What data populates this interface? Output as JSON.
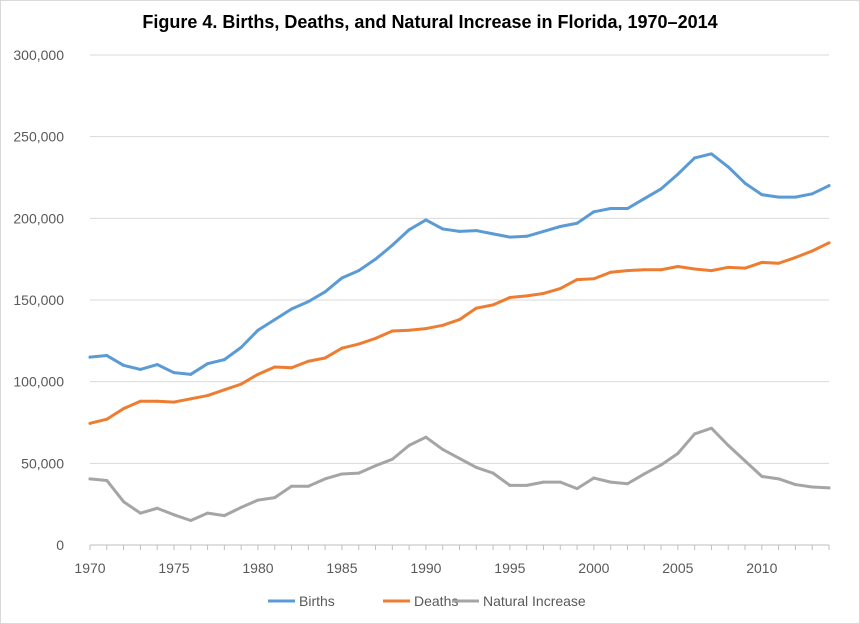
{
  "chart_data": {
    "type": "line",
    "title": "Figure 4. Births, Deaths, and Natural Increase in Florida, 1970–2014",
    "xlabel": "",
    "ylabel": "",
    "xlim": [
      1970,
      2014
    ],
    "ylim": [
      0,
      300000
    ],
    "x_ticks": [
      1970,
      1975,
      1980,
      1985,
      1990,
      1995,
      2000,
      2005,
      2010
    ],
    "y_ticks": [
      0,
      50000,
      100000,
      150000,
      200000,
      250000,
      300000
    ],
    "y_tick_labels": [
      "0",
      "50,000",
      "100,000",
      "150,000",
      "200,000",
      "250,000",
      "300,000"
    ],
    "grid": "horizontal",
    "legend_position": "bottom",
    "x": [
      1970,
      1971,
      1972,
      1973,
      1974,
      1975,
      1976,
      1977,
      1978,
      1979,
      1980,
      1981,
      1982,
      1983,
      1984,
      1985,
      1986,
      1987,
      1988,
      1989,
      1990,
      1991,
      1992,
      1993,
      1994,
      1995,
      1996,
      1997,
      1998,
      1999,
      2000,
      2001,
      2002,
      2003,
      2004,
      2005,
      2006,
      2007,
      2008,
      2009,
      2010,
      2011,
      2012,
      2013,
      2014
    ],
    "series": [
      {
        "name": "Births",
        "color": "#5b9bd5",
        "values": [
          115000,
          116000,
          110000,
          107500,
          110500,
          105500,
          104500,
          111000,
          113500,
          121000,
          131500,
          138000,
          144500,
          149000,
          155000,
          163500,
          168000,
          175000,
          183500,
          193000,
          199000,
          193500,
          192000,
          192500,
          190500,
          188500,
          189000,
          192000,
          195000,
          197000,
          204000,
          206000,
          206000,
          212000,
          218000,
          227000,
          237000,
          239500,
          231500,
          221500,
          214500,
          213000,
          213000,
          215000,
          220000
        ]
      },
      {
        "name": "Deaths",
        "color": "#ed7d31",
        "values": [
          74500,
          77000,
          83500,
          88000,
          88000,
          87500,
          89500,
          91500,
          95000,
          98500,
          104500,
          109000,
          108500,
          112500,
          114500,
          120500,
          123000,
          126500,
          131000,
          131500,
          132500,
          134500,
          138000,
          145000,
          147000,
          151500,
          152500,
          154000,
          157000,
          162500,
          163000,
          167000,
          168000,
          168500,
          168500,
          170500,
          169000,
          168000,
          170000,
          169500,
          173000,
          172500,
          176000,
          180000,
          185000
        ]
      },
      {
        "name": "Natural Increase",
        "color": "#a5a5a5",
        "values": [
          40500,
          39500,
          26500,
          19500,
          22500,
          18500,
          15000,
          19500,
          18000,
          23000,
          27500,
          29000,
          36000,
          36000,
          40500,
          43500,
          44000,
          48500,
          52500,
          61000,
          66000,
          58500,
          53000,
          47500,
          44000,
          36500,
          36500,
          38500,
          38500,
          34500,
          41000,
          38500,
          37500,
          43500,
          49000,
          56000,
          68000,
          71500,
          61000,
          51500,
          42000,
          40500,
          37000,
          35500,
          35000
        ]
      }
    ]
  }
}
